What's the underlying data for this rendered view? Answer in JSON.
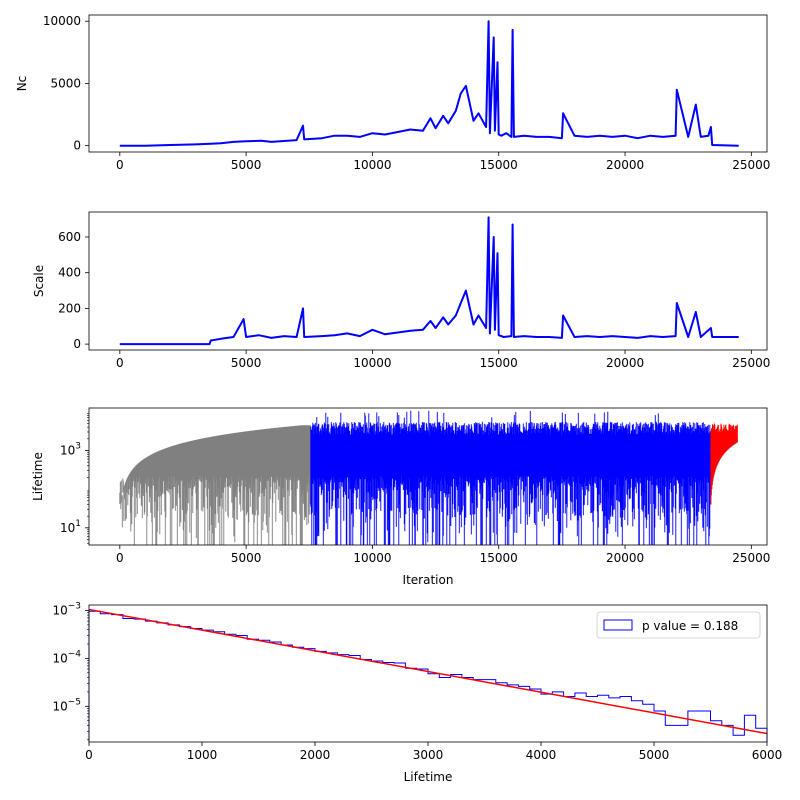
{
  "chart_data": [
    {
      "id": "nc",
      "type": "line",
      "xlabel": "",
      "ylabel": "Nc",
      "xlim": [
        -1220,
        25620
      ],
      "ylim": [
        -510,
        10500
      ],
      "xticks": [
        0,
        5000,
        10000,
        15000,
        20000,
        25000
      ],
      "yticks": [
        0,
        5000,
        10000
      ],
      "series": [
        {
          "color": "#0000ff",
          "x": [
            0,
            1000,
            2000,
            3000,
            3600,
            4000,
            4500,
            5000,
            5600,
            6000,
            7000,
            7250,
            7300,
            8000,
            8500,
            9000,
            9500,
            10000,
            10500,
            11000,
            11500,
            12000,
            12300,
            12500,
            12800,
            13000,
            13300,
            13500,
            13700,
            14000,
            14200,
            14500,
            14600,
            14650,
            14800,
            14850,
            14950,
            15000,
            15100,
            15300,
            15500,
            15550,
            15600,
            16000,
            16500,
            17000,
            17500,
            17550,
            18000,
            18500,
            19000,
            19500,
            20000,
            20500,
            21000,
            21500,
            22000,
            22050,
            22500,
            22800,
            23000,
            23300,
            23400,
            23450,
            24500
          ],
          "y": [
            0,
            0,
            50,
            100,
            150,
            200,
            300,
            350,
            400,
            300,
            450,
            1600,
            500,
            600,
            800,
            800,
            700,
            1000,
            900,
            1100,
            1300,
            1200,
            2200,
            1400,
            2400,
            1800,
            2800,
            4200,
            4800,
            2000,
            2600,
            1500,
            10000,
            1000,
            8700,
            1200,
            6700,
            900,
            800,
            1000,
            700,
            9300,
            700,
            800,
            700,
            700,
            600,
            2600,
            800,
            700,
            800,
            700,
            800,
            600,
            800,
            700,
            800,
            4500,
            700,
            3300,
            700,
            800,
            1500,
            50,
            0
          ]
        }
      ]
    },
    {
      "id": "scale",
      "type": "line",
      "xlabel": "",
      "ylabel": "Scale",
      "xlim": [
        -1220,
        25620
      ],
      "ylim": [
        -33,
        740
      ],
      "xticks": [
        0,
        5000,
        10000,
        15000,
        20000,
        25000
      ],
      "yticks": [
        0,
        200,
        400,
        600
      ],
      "series": [
        {
          "color": "#0000ff",
          "x": [
            0,
            3550,
            3600,
            4000,
            4500,
            4900,
            5000,
            5500,
            6000,
            6500,
            7000,
            7250,
            7300,
            8000,
            8500,
            9000,
            9500,
            10000,
            10500,
            11000,
            11500,
            12000,
            12300,
            12500,
            12800,
            13000,
            13300,
            13500,
            13700,
            14000,
            14200,
            14500,
            14600,
            14650,
            14800,
            14850,
            14950,
            15000,
            15200,
            15500,
            15550,
            15600,
            16000,
            16500,
            17000,
            17500,
            17550,
            18000,
            18500,
            19000,
            19500,
            20000,
            20500,
            21000,
            21500,
            22000,
            22050,
            22500,
            22800,
            23000,
            23400,
            23450,
            24500
          ],
          "y": [
            0,
            0,
            20,
            30,
            40,
            140,
            40,
            50,
            35,
            45,
            40,
            200,
            40,
            45,
            50,
            60,
            45,
            80,
            55,
            65,
            75,
            80,
            130,
            90,
            150,
            110,
            160,
            230,
            300,
            110,
            160,
            90,
            710,
            60,
            600,
            80,
            510,
            50,
            40,
            45,
            670,
            40,
            45,
            40,
            40,
            35,
            160,
            40,
            45,
            40,
            45,
            40,
            35,
            45,
            40,
            45,
            230,
            40,
            180,
            40,
            90,
            40,
            40
          ]
        }
      ]
    },
    {
      "id": "lifetime",
      "type": "area",
      "xlabel": "Iteration",
      "ylabel": "Lifetime",
      "xlim": [
        -1220,
        25620
      ],
      "ylim": [
        3.6,
        12500
      ],
      "yscale": "log",
      "xticks": [
        0,
        5000,
        10000,
        15000,
        20000,
        25000
      ],
      "yticks_log": [
        {
          "base": "10",
          "exp": "1",
          "value": 10
        },
        {
          "base": "10",
          "exp": "3",
          "value": 1000
        }
      ],
      "segments": [
        {
          "color": "#808080",
          "x_start": 0,
          "x_end": 7560
        },
        {
          "color": "#0000ff",
          "x_start": 7560,
          "x_end": 23400
        },
        {
          "color": "#ff0000",
          "x_start": 23400,
          "x_end": 24450
        }
      ]
    },
    {
      "id": "histogram",
      "type": "bar",
      "xlabel": "Lifetime",
      "ylabel": "",
      "xlim": [
        0,
        6000
      ],
      "ylim": [
        1.8e-06,
        0.0013
      ],
      "yscale": "log",
      "xticks": [
        0,
        1000,
        2000,
        3000,
        4000,
        5000,
        6000
      ],
      "yticks_log": [
        {
          "base": "10",
          "exp": "−3",
          "value": 0.001
        },
        {
          "base": "10",
          "exp": "−4",
          "value": 0.0001
        },
        {
          "base": "10",
          "exp": "−5",
          "value": 1e-05
        }
      ],
      "bin_width": 100,
      "bin_values": [
        0.00096,
        0.00085,
        0.00082,
        0.00068,
        0.00066,
        0.0006,
        0.00055,
        0.0005,
        0.00046,
        0.00042,
        0.00039,
        0.00036,
        0.00032,
        0.0003,
        0.00025,
        0.00024,
        0.00022,
        0.00019,
        0.00017,
        0.00016,
        0.00014,
        0.00013,
        0.00012,
        0.000115,
        9.5e-05,
        8.8e-05,
        8.2e-05,
        8e-05,
        6.2e-05,
        6e-05,
        4.8e-05,
        4e-05,
        4.6e-05,
        4e-05,
        3.6e-05,
        3.6e-05,
        3.1e-05,
        2.8e-05,
        2.6e-05,
        2.3e-05,
        1.8e-05,
        2e-05,
        1.6e-05,
        1.9e-05,
        1.6e-05,
        1.7e-05,
        1.5e-05,
        1.6e-05,
        1.3e-05,
        1.1e-05,
        8e-06,
        4e-06,
        4e-06,
        8e-06,
        8e-06,
        5e-06,
        4e-06,
        2.5e-06,
        6.5e-06,
        3.5e-06
      ],
      "fit_line": {
        "color": "#ff0000",
        "x": [
          0,
          6000
        ],
        "y": [
          0.00105,
          2.7e-06
        ]
      },
      "legend": {
        "label": "p value = 0.188",
        "position": "upper right",
        "edge_color": "#0000ff"
      }
    }
  ]
}
